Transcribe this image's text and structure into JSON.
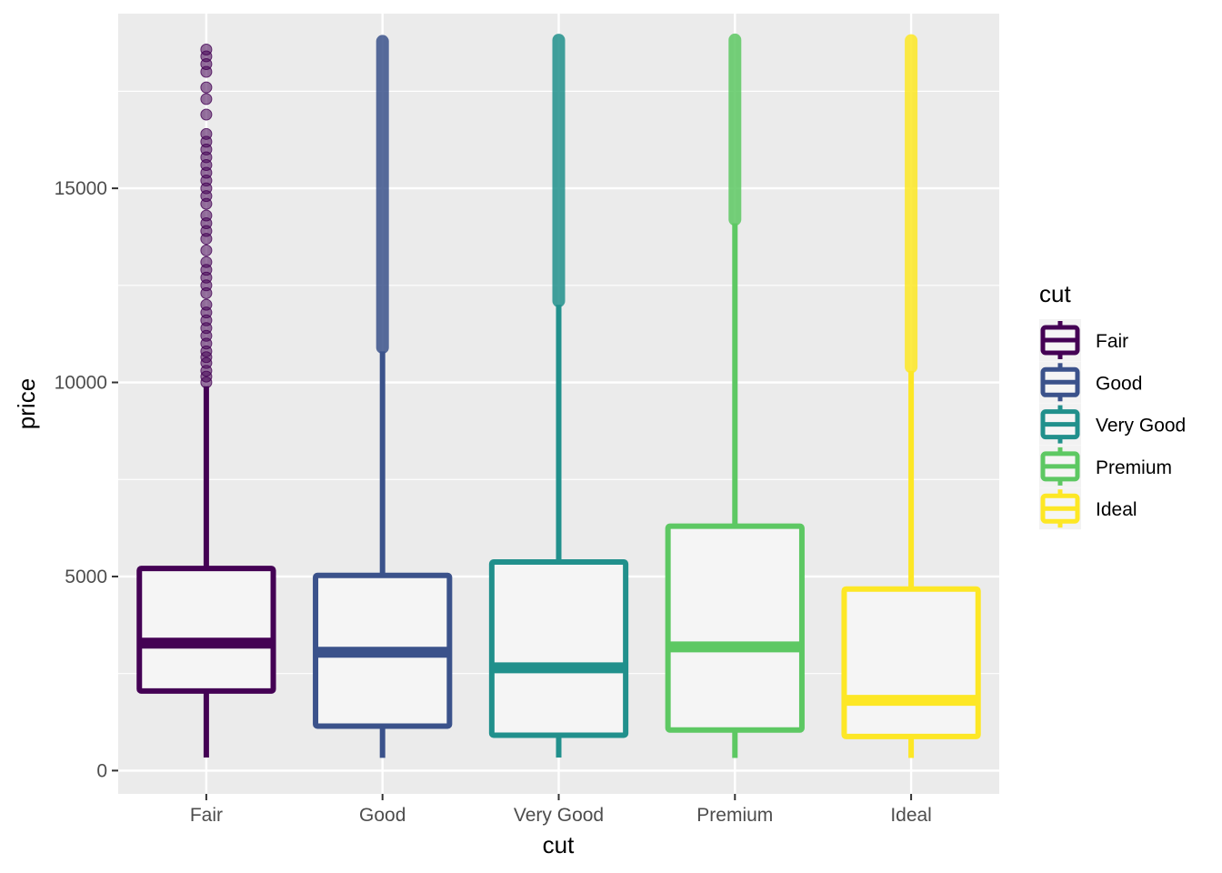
{
  "chart_data": {
    "type": "boxplot",
    "xlabel": "cut",
    "ylabel": "price",
    "ylim": [
      0,
      19500
    ],
    "y_ticks": [
      0,
      5000,
      10000,
      15000
    ],
    "grid": true,
    "legend": {
      "title": "cut",
      "placement": "right",
      "entries": [
        "Fair",
        "Good",
        "Very Good",
        "Premium",
        "Ideal"
      ]
    },
    "categories": [
      "Fair",
      "Good",
      "Very Good",
      "Premium",
      "Ideal"
    ],
    "colors": [
      "#440154",
      "#3b528b",
      "#21908c",
      "#5dc863",
      "#fde725"
    ],
    "boxes": [
      {
        "category": "Fair",
        "whisker_low": 337,
        "q1": 2050,
        "median": 3282,
        "q3": 5206,
        "whisker_high": 9900,
        "outliers": [
          10000,
          10150,
          10300,
          10500,
          10650,
          10800,
          11000,
          11200,
          11400,
          11600,
          11800,
          12000,
          12300,
          12500,
          12700,
          12900,
          13100,
          13400,
          13700,
          13900,
          14100,
          14300,
          14600,
          14800,
          15000,
          15200,
          15400,
          15600,
          15800,
          16000,
          16200,
          16400,
          16900,
          17300,
          17600,
          18000,
          18200,
          18400,
          18574
        ]
      },
      {
        "category": "Good",
        "whisker_low": 327,
        "q1": 1145,
        "median": 3050,
        "q3": 5028,
        "whisker_high": 10800,
        "outlier_range": [
          10900,
          18788
        ]
      },
      {
        "category": "Very Good",
        "whisker_low": 336,
        "q1": 912,
        "median": 2648,
        "q3": 5373,
        "whisker_high": 12000,
        "outlier_range": [
          12100,
          18818
        ]
      },
      {
        "category": "Premium",
        "whisker_low": 326,
        "q1": 1046,
        "median": 3185,
        "q3": 6296,
        "whisker_high": 14100,
        "outlier_range": [
          14200,
          18823
        ]
      },
      {
        "category": "Ideal",
        "whisker_low": 326,
        "q1": 878,
        "median": 1810,
        "q3": 4678,
        "whisker_high": 10300,
        "outlier_range": [
          10400,
          18806
        ]
      }
    ]
  }
}
